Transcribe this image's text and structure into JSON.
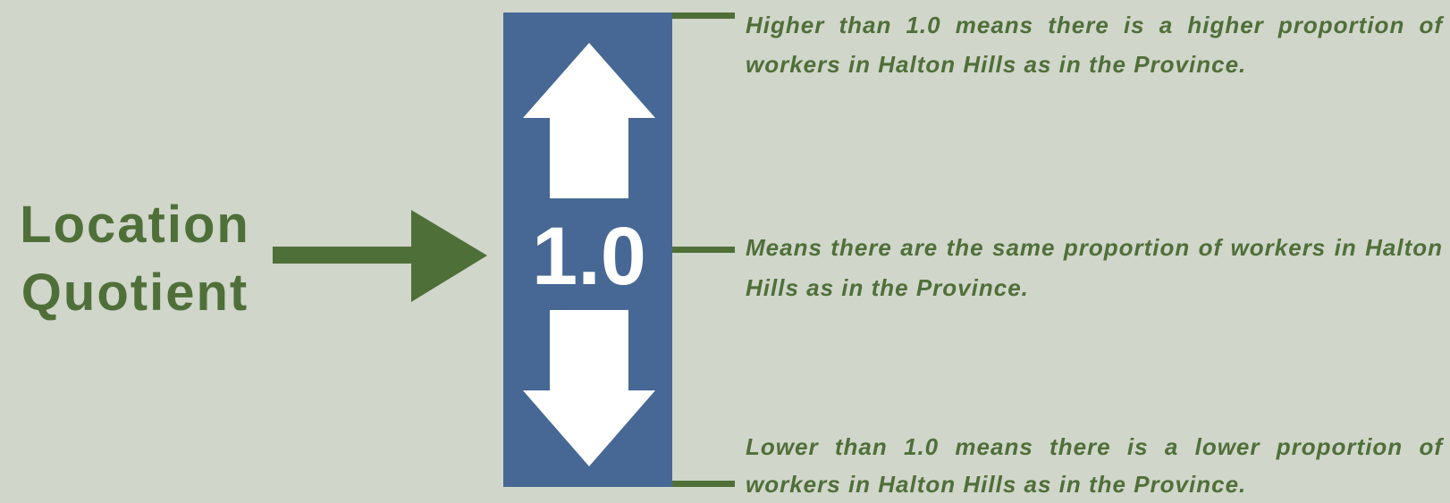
{
  "label": {
    "lines": [
      "Location",
      "Quotient"
    ]
  },
  "center_value": "1.0",
  "descriptions": [
    {
      "before": "Higher than 1.0 means there is a ",
      "emphasis": "higher proportion",
      "after": " of workers in Halton Hills as in the Province."
    },
    {
      "before": "Means there are the same proportion of workers in Halton Hills as in the Province."
    },
    {
      "before": "Lower than 1.0 means there is a ",
      "emphasis": "lower proportion",
      "after": " of workers in Halton Hills as in the Province."
    }
  ]
}
